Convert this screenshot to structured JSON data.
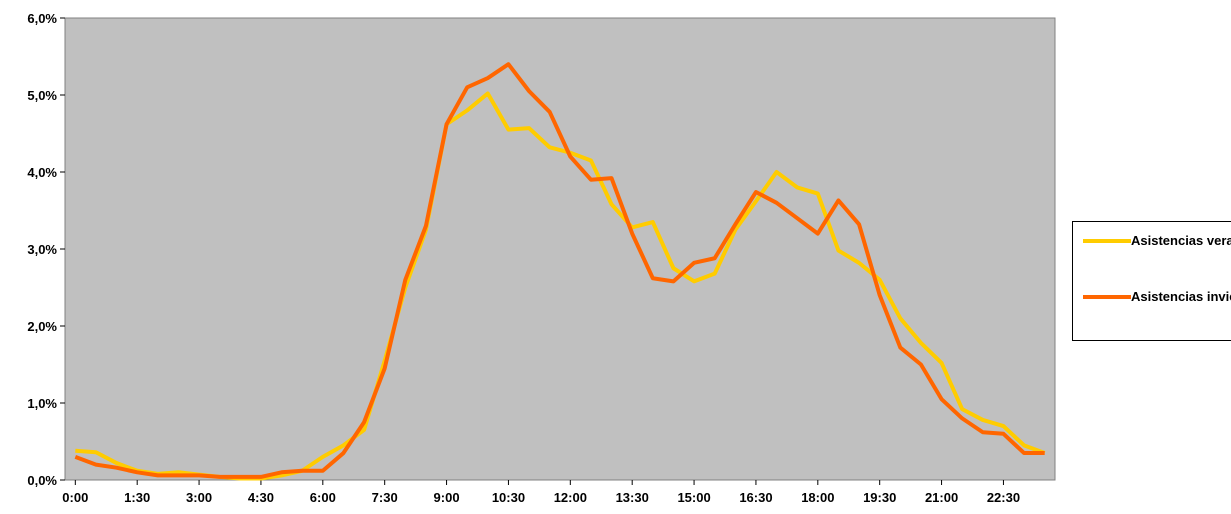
{
  "chart_data": {
    "type": "line",
    "x": [
      "0:00",
      "0:30",
      "1:00",
      "1:30",
      "2:00",
      "2:30",
      "3:00",
      "3:30",
      "4:00",
      "4:30",
      "5:00",
      "5:30",
      "6:00",
      "6:30",
      "7:00",
      "7:30",
      "8:00",
      "8:30",
      "9:00",
      "9:30",
      "10:00",
      "10:30",
      "11:00",
      "11:30",
      "12:00",
      "12:30",
      "13:00",
      "13:30",
      "14:00",
      "14:30",
      "15:00",
      "15:30",
      "16:00",
      "16:30",
      "17:00",
      "17:30",
      "18:00",
      "18:30",
      "19:00",
      "19:30",
      "20:00",
      "20:30",
      "21:00",
      "21:30",
      "22:00",
      "22:30",
      "23:00",
      "23:30"
    ],
    "x_tick_labels": [
      "0:00",
      "1:30",
      "3:00",
      "4:30",
      "6:00",
      "7:30",
      "9:00",
      "10:30",
      "12:00",
      "13:30",
      "15:00",
      "16:30",
      "18:00",
      "19:30",
      "21:00",
      "22:30"
    ],
    "y_tick_labels": [
      "0,0%",
      "1,0%",
      "2,0%",
      "3,0%",
      "4,0%",
      "5,0%",
      "6,0%"
    ],
    "ylim": [
      0,
      6
    ],
    "series": [
      {
        "name": "Asistencias verano",
        "color": "#FFCC00",
        "values": [
          0.38,
          0.36,
          0.22,
          0.12,
          0.08,
          0.1,
          0.07,
          0.04,
          0.02,
          0.02,
          0.06,
          0.12,
          0.3,
          0.45,
          0.65,
          1.55,
          2.5,
          3.25,
          4.62,
          4.8,
          5.02,
          4.55,
          4.57,
          4.32,
          4.25,
          4.15,
          3.58,
          3.28,
          3.35,
          2.75,
          2.58,
          2.68,
          3.25,
          3.62,
          4.0,
          3.8,
          3.72,
          2.98,
          2.82,
          2.6,
          2.1,
          1.78,
          1.52,
          0.92,
          0.78,
          0.7,
          0.45,
          0.35
        ]
      },
      {
        "name": "Asistencias invierno",
        "color": "#FF6600",
        "values": [
          0.3,
          0.2,
          0.16,
          0.1,
          0.06,
          0.06,
          0.06,
          0.04,
          0.04,
          0.04,
          0.1,
          0.12,
          0.12,
          0.35,
          0.75,
          1.45,
          2.6,
          3.3,
          4.62,
          5.1,
          5.22,
          5.4,
          5.05,
          4.78,
          4.2,
          3.9,
          3.92,
          3.2,
          2.62,
          2.58,
          2.82,
          2.88,
          3.32,
          3.74,
          3.6,
          3.4,
          3.2,
          3.63,
          3.32,
          2.4,
          1.72,
          1.5,
          1.05,
          0.8,
          0.62,
          0.6,
          0.35,
          0.35
        ]
      }
    ],
    "legend_position": "right",
    "plot_background": "#C0C0C0",
    "grid": false
  }
}
